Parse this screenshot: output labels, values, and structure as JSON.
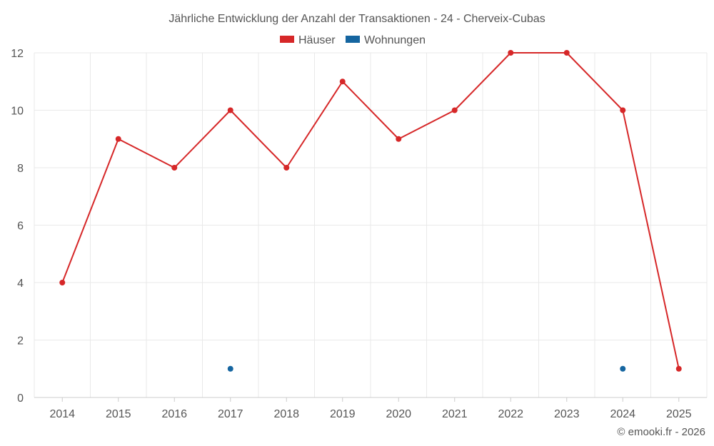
{
  "chart_data": {
    "type": "line",
    "title": "Jährliche Entwicklung der Anzahl der Transaktionen - 24 - Cherveix-Cubas",
    "xlabel": "",
    "ylabel": "",
    "categories": [
      "2014",
      "2015",
      "2016",
      "2017",
      "2018",
      "2019",
      "2020",
      "2021",
      "2022",
      "2023",
      "2024",
      "2025"
    ],
    "ylim": [
      0,
      12
    ],
    "yticks": [
      0,
      2,
      4,
      6,
      8,
      10,
      12
    ],
    "grid": true,
    "legend_position": "top-center",
    "series": [
      {
        "name": "Häuser",
        "color": "#d62728",
        "values": [
          4,
          9,
          8,
          10,
          8,
          11,
          9,
          10,
          12,
          12,
          10,
          1
        ]
      },
      {
        "name": "Wohnungen",
        "color": "#1565a0",
        "values": [
          null,
          null,
          null,
          1,
          null,
          null,
          null,
          null,
          null,
          null,
          1,
          null
        ]
      }
    ]
  },
  "credit": "© emooki.fr - 2026"
}
